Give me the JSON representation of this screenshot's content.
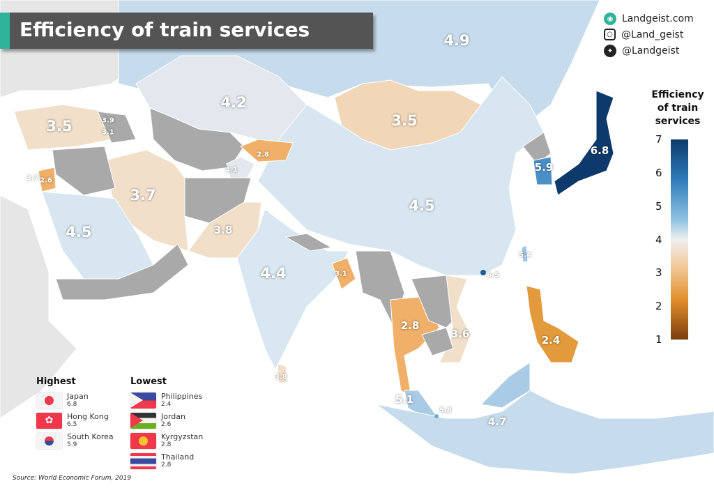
{
  "title": "Efficiency of train services",
  "social": [
    {
      "icon": "globe-icon",
      "label": "Landgeist.com"
    },
    {
      "icon": "instagram-icon",
      "label": "@Land_geist"
    },
    {
      "icon": "twitter-icon",
      "label": "@Landgeist"
    }
  ],
  "legend": {
    "title_lines": [
      "Efficiency",
      "of train",
      "services"
    ],
    "ticks": [
      "7",
      "6",
      "5",
      "4",
      "3",
      "2",
      "1"
    ],
    "colors": {
      "high": "#0d3a6b",
      "mid": "#efefef",
      "low": "#7a3d0b",
      "no_data": "#a9a9a9"
    }
  },
  "map_labels": [
    "4.9",
    "4.2",
    "3.5",
    "3.5",
    "3.9",
    "3.1",
    "2.8",
    "4.1",
    "3.7",
    "2.6",
    "3.7",
    "4.5",
    "5.9",
    "6.8",
    "4.5",
    "3.8",
    "4.4",
    "3.1",
    "5.4",
    "6.5",
    "2.8",
    "3.6",
    "2.4",
    "3.8",
    "5.1",
    "5.8",
    "4.7"
  ],
  "highest": {
    "heading": "Highest",
    "items": [
      {
        "name": "Japan",
        "value": "6.8"
      },
      {
        "name": "Hong Kong",
        "value": "6.5"
      },
      {
        "name": "South Korea",
        "value": "5.9"
      }
    ]
  },
  "lowest": {
    "heading": "Lowest",
    "items": [
      {
        "name": "Philippines",
        "value": "2.4"
      },
      {
        "name": "Jordan",
        "value": "2.6"
      },
      {
        "name": "Kyrgyzstan",
        "value": "2.8"
      },
      {
        "name": "Thailand",
        "value": "2.8"
      }
    ]
  },
  "source": "Source: World Economic Forum, 2019"
}
